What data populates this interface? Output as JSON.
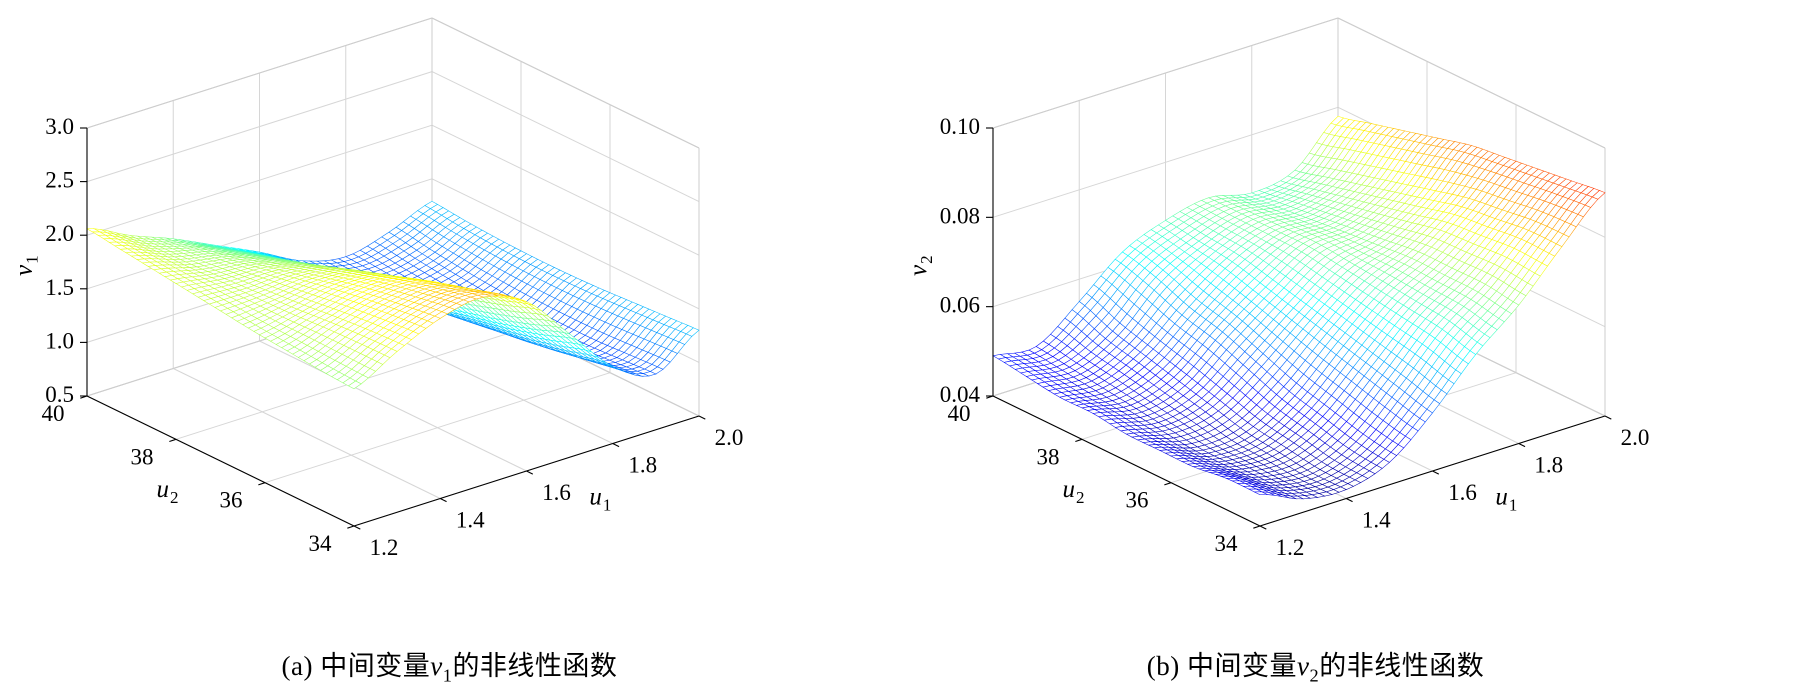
{
  "figure": {
    "background": "#ffffff",
    "colormap": "jet"
  },
  "chart_data": [
    {
      "type": "surface-mesh",
      "panel": "a",
      "caption": {
        "pre": "(a) 中间变量",
        "var": "v",
        "sub": "1",
        "post": "的非线性函数"
      },
      "x_axis": {
        "label": "u",
        "label_sub": "1",
        "range": [
          1.2,
          2.0
        ],
        "tick_values": [
          1.2,
          1.4,
          1.6,
          1.8,
          2.0
        ],
        "tick_labels": [
          "1.2",
          "1.4",
          "1.6",
          "1.8",
          "2.0"
        ]
      },
      "y_axis": {
        "label": "u",
        "label_sub": "2",
        "range": [
          34,
          40
        ],
        "tick_values": [
          34,
          36,
          38,
          40
        ],
        "tick_labels": [
          "34",
          "36",
          "38",
          "40"
        ]
      },
      "z_axis": {
        "label": "v",
        "label_sub": "1",
        "range": [
          0.5,
          3.0
        ],
        "tick_values": [
          0.5,
          1.0,
          1.5,
          2.0,
          2.5,
          3.0
        ],
        "tick_labels": [
          "0.5",
          "1.0",
          "1.5",
          "2.0",
          "2.5",
          "3.0"
        ]
      },
      "colormap": "jet",
      "grid": true,
      "x_values": [
        1.2,
        1.3,
        1.4,
        1.5,
        1.6,
        1.7,
        1.8,
        1.9,
        2.0
      ],
      "y_values": [
        34,
        34.75,
        35.5,
        36.25,
        37,
        37.75,
        38.5,
        39.25,
        40
      ],
      "z_grid": [
        [
          1.78,
          2.0,
          2.18,
          2.25,
          2.08,
          1.65,
          1.22,
          1.02,
          1.3
        ],
        [
          1.8,
          1.99,
          2.14,
          2.18,
          1.98,
          1.54,
          1.15,
          1.0,
          1.28
        ],
        [
          1.83,
          1.97,
          2.09,
          2.1,
          1.88,
          1.44,
          1.09,
          0.98,
          1.26
        ],
        [
          1.86,
          1.94,
          2.03,
          2.0,
          1.77,
          1.36,
          1.05,
          0.98,
          1.24
        ],
        [
          1.9,
          1.92,
          1.96,
          1.9,
          1.66,
          1.28,
          1.02,
          0.99,
          1.23
        ],
        [
          1.94,
          1.9,
          1.89,
          1.79,
          1.56,
          1.22,
          1.0,
          1.01,
          1.23
        ],
        [
          1.98,
          1.88,
          1.82,
          1.69,
          1.47,
          1.17,
          1.0,
          1.04,
          1.24
        ],
        [
          2.02,
          1.87,
          1.76,
          1.6,
          1.39,
          1.14,
          1.01,
          1.08,
          1.26
        ],
        [
          2.06,
          1.87,
          1.71,
          1.52,
          1.33,
          1.12,
          1.03,
          1.13,
          1.29
        ]
      ]
    },
    {
      "type": "surface-mesh",
      "panel": "b",
      "caption": {
        "pre": "(b) 中间变量",
        "var": "v",
        "sub": "2",
        "post": "的非线性函数"
      },
      "x_axis": {
        "label": "u",
        "label_sub": "1",
        "range": [
          1.2,
          2.0
        ],
        "tick_values": [
          1.2,
          1.4,
          1.6,
          1.8,
          2.0
        ],
        "tick_labels": [
          "1.2",
          "1.4",
          "1.6",
          "1.8",
          "2.0"
        ]
      },
      "y_axis": {
        "label": "u",
        "label_sub": "2",
        "range": [
          34,
          40
        ],
        "tick_values": [
          34,
          36,
          38,
          40
        ],
        "tick_labels": [
          "34",
          "36",
          "38",
          "40"
        ]
      },
      "z_axis": {
        "label": "v",
        "label_sub": "2",
        "range": [
          0.04,
          0.1
        ],
        "tick_values": [
          0.04,
          0.06,
          0.08,
          0.1
        ],
        "tick_labels": [
          "0.04",
          "0.06",
          "0.08",
          "0.10"
        ]
      },
      "colormap": "jet",
      "grid": true,
      "x_values": [
        1.2,
        1.3,
        1.4,
        1.5,
        1.6,
        1.7,
        1.8,
        1.9,
        2.0
      ],
      "y_values": [
        34,
        34.75,
        35.5,
        36.25,
        37,
        37.75,
        38.5,
        39.25,
        40
      ],
      "z_grid": [
        [
          0.047,
          0.043,
          0.042,
          0.045,
          0.053,
          0.063,
          0.071,
          0.081,
          0.09
        ],
        [
          0.047,
          0.043,
          0.042,
          0.046,
          0.055,
          0.065,
          0.072,
          0.081,
          0.089
        ],
        [
          0.046,
          0.043,
          0.043,
          0.048,
          0.057,
          0.066,
          0.072,
          0.08,
          0.088
        ],
        [
          0.046,
          0.043,
          0.044,
          0.05,
          0.059,
          0.067,
          0.072,
          0.079,
          0.087
        ],
        [
          0.046,
          0.044,
          0.046,
          0.053,
          0.061,
          0.068,
          0.071,
          0.077,
          0.086
        ],
        [
          0.047,
          0.045,
          0.048,
          0.056,
          0.063,
          0.069,
          0.07,
          0.075,
          0.084
        ],
        [
          0.047,
          0.046,
          0.05,
          0.058,
          0.065,
          0.069,
          0.069,
          0.073,
          0.082
        ],
        [
          0.048,
          0.047,
          0.052,
          0.061,
          0.066,
          0.069,
          0.068,
          0.071,
          0.08
        ],
        [
          0.049,
          0.048,
          0.055,
          0.063,
          0.067,
          0.069,
          0.067,
          0.069,
          0.078
        ]
      ]
    }
  ]
}
